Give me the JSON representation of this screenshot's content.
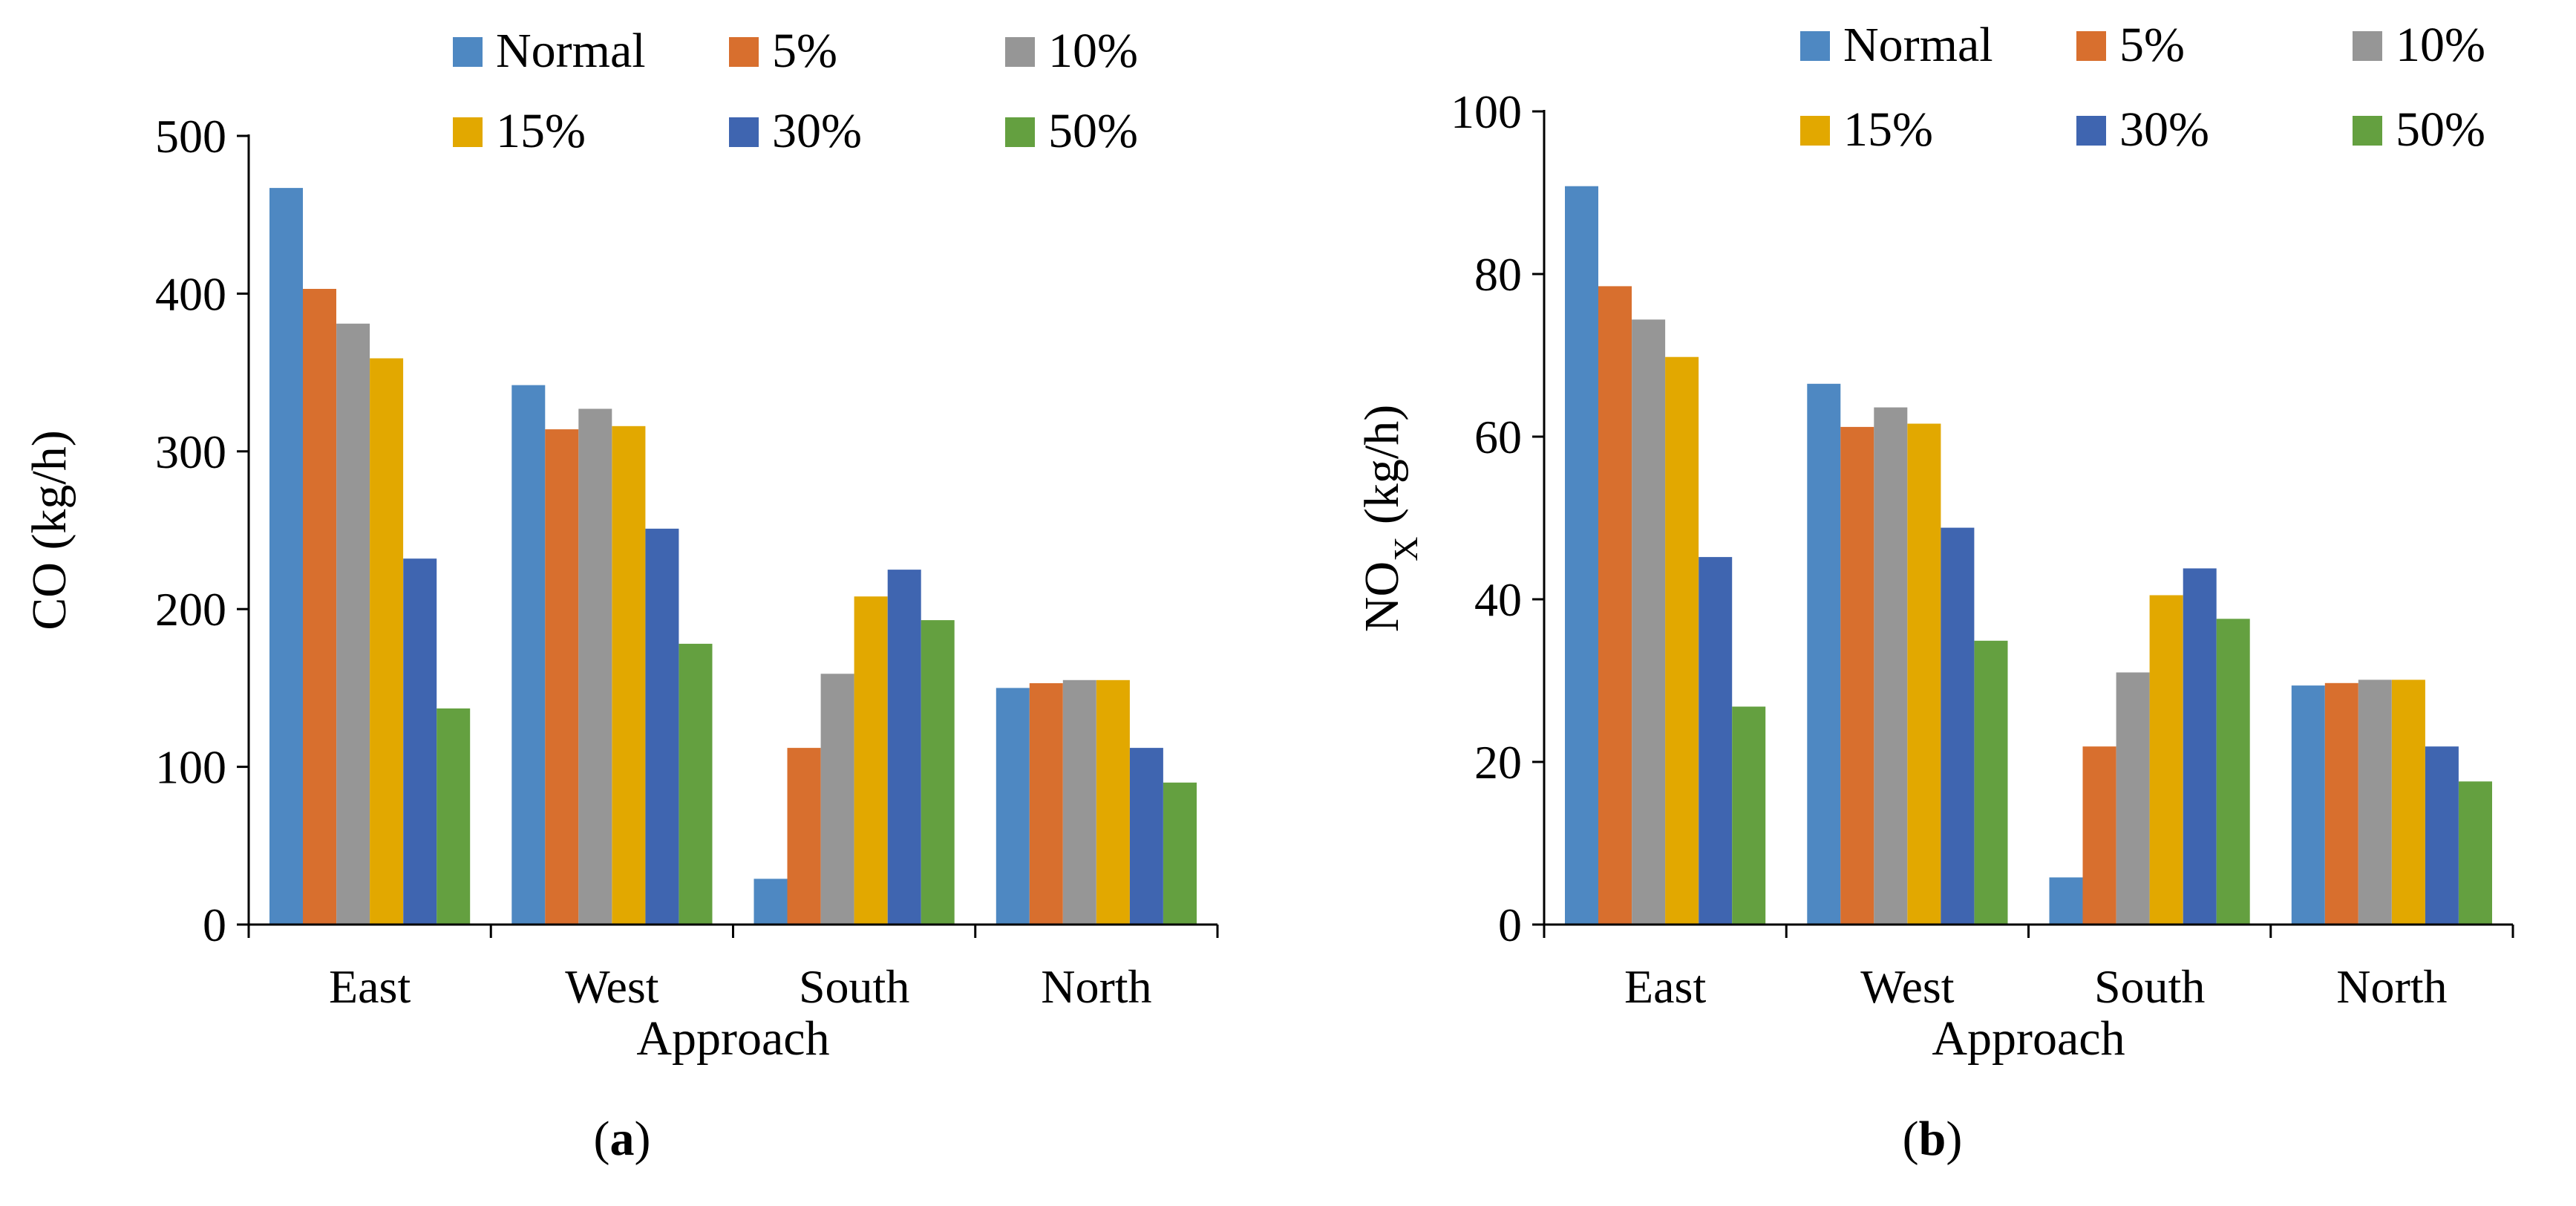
{
  "chart_data": [
    {
      "type": "bar",
      "panel_label": "a",
      "categories": [
        "East",
        "West",
        "South",
        "North"
      ],
      "series": [
        {
          "name": "Normal",
          "color": "#4E88C2",
          "values": [
            467,
            342,
            29,
            150
          ]
        },
        {
          "name": "5%",
          "color": "#D86F2E",
          "values": [
            403,
            314,
            112,
            153
          ]
        },
        {
          "name": "10%",
          "color": "#969696",
          "values": [
            381,
            327,
            159,
            155
          ]
        },
        {
          "name": "15%",
          "color": "#E2A800",
          "values": [
            359,
            316,
            208,
            155
          ]
        },
        {
          "name": "30%",
          "color": "#3F65B0",
          "values": [
            232,
            251,
            225,
            112
          ]
        },
        {
          "name": "50%",
          "color": "#64A040",
          "values": [
            137,
            178,
            193,
            90
          ]
        }
      ],
      "title": "",
      "xlabel": "Approach",
      "ylabel_main": "CO (kg/h)",
      "ylabel_sub": "",
      "ylabel_suffix": "",
      "ylim": [
        0,
        500
      ],
      "yticks": [
        "0",
        "100",
        "200",
        "300",
        "400",
        "500"
      ],
      "grid": false,
      "legend_position": "top"
    },
    {
      "type": "bar",
      "panel_label": "b",
      "categories": [
        "East",
        "West",
        "South",
        "North"
      ],
      "series": [
        {
          "name": "Normal",
          "color": "#4E88C2",
          "values": [
            90.8,
            66.5,
            5.8,
            29.4
          ]
        },
        {
          "name": "5%",
          "color": "#D86F2E",
          "values": [
            78.5,
            61.2,
            21.9,
            29.7
          ]
        },
        {
          "name": "10%",
          "color": "#969696",
          "values": [
            74.4,
            63.6,
            31.0,
            30.1
          ]
        },
        {
          "name": "15%",
          "color": "#E2A800",
          "values": [
            69.8,
            61.6,
            40.5,
            30.1
          ]
        },
        {
          "name": "30%",
          "color": "#3F65B0",
          "values": [
            45.2,
            48.8,
            43.8,
            21.9
          ]
        },
        {
          "name": "50%",
          "color": "#64A040",
          "values": [
            26.8,
            34.9,
            37.6,
            17.6
          ]
        }
      ],
      "title": "",
      "xlabel": "Approach",
      "ylabel_main": "NO",
      "ylabel_sub": "X",
      "ylabel_suffix": " (kg/h)",
      "ylim": [
        0,
        100
      ],
      "yticks": [
        "0",
        "20",
        "40",
        "60",
        "80",
        "100"
      ],
      "grid": false,
      "legend_position": "top"
    }
  ]
}
